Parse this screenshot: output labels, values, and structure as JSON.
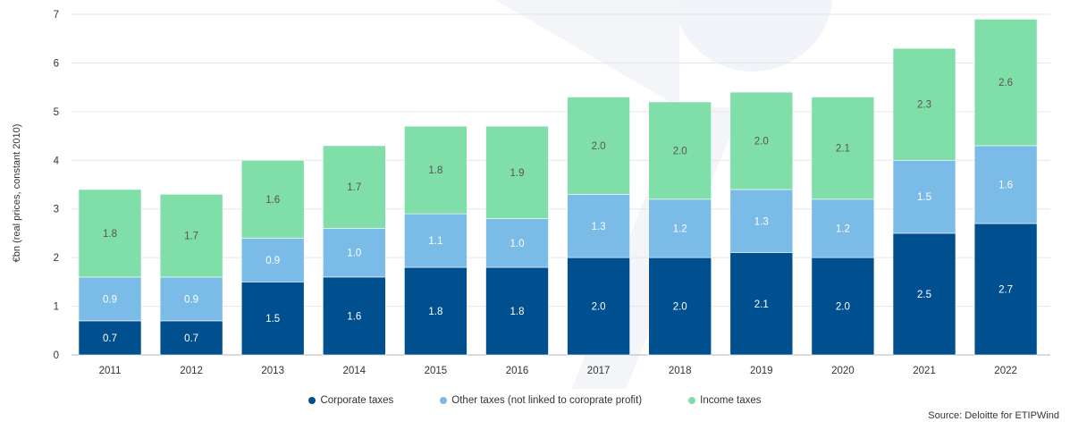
{
  "chart_data": {
    "type": "bar",
    "stacked": true,
    "title": "",
    "xlabel": "",
    "ylabel": "€bn (real prices, constant 2010)",
    "ylim": [
      0,
      7
    ],
    "yticks": [
      "0",
      "1",
      "2",
      "3",
      "4",
      "5",
      "6",
      "7"
    ],
    "grid": true,
    "legend_position": "bottom",
    "categories": [
      "2011",
      "2012",
      "2013",
      "2014",
      "2015",
      "2016",
      "2017",
      "2018",
      "2019",
      "2020",
      "2021",
      "2022"
    ],
    "series": [
      {
        "name": "Corporate taxes",
        "color": "#00508f",
        "label_color": "#ffffff",
        "values": [
          0.7,
          0.7,
          1.5,
          1.6,
          1.8,
          1.8,
          2.0,
          2.0,
          2.1,
          2.0,
          2.5,
          2.7
        ],
        "labels": [
          "0.7",
          "0.7",
          "1.5",
          "1.6",
          "1.8",
          "1.8",
          "2.0",
          "2.0",
          "2.1",
          "2.0",
          "2.5",
          "2.7"
        ]
      },
      {
        "name": "Other taxes (not linked to coroprate profit)",
        "color": "#7bbbe8",
        "label_color": "#ffffff",
        "values": [
          0.9,
          0.9,
          0.9,
          1.0,
          1.1,
          1.0,
          1.3,
          1.2,
          1.3,
          1.2,
          1.5,
          1.6
        ],
        "labels": [
          "0.9",
          "0.9",
          "0.9",
          "1.0",
          "1.1",
          "1.0",
          "1.3",
          "1.2",
          "1.3",
          "1.2",
          "1.5",
          "1.6"
        ]
      },
      {
        "name": "Income taxes",
        "color": "#80dfa8",
        "label_color": "#555555",
        "values": [
          1.8,
          1.7,
          1.6,
          1.7,
          1.8,
          1.9,
          2.0,
          2.0,
          2.0,
          2.1,
          2.3,
          2.6
        ],
        "labels": [
          "1.8",
          "1.7",
          "1.6",
          "1.7",
          "1.8",
          "1.9",
          "2.0",
          "2.0",
          "2.0",
          "2.1",
          "2.3",
          "2.6"
        ]
      }
    ],
    "source": "Source: Deloitte for ETIPWind"
  }
}
